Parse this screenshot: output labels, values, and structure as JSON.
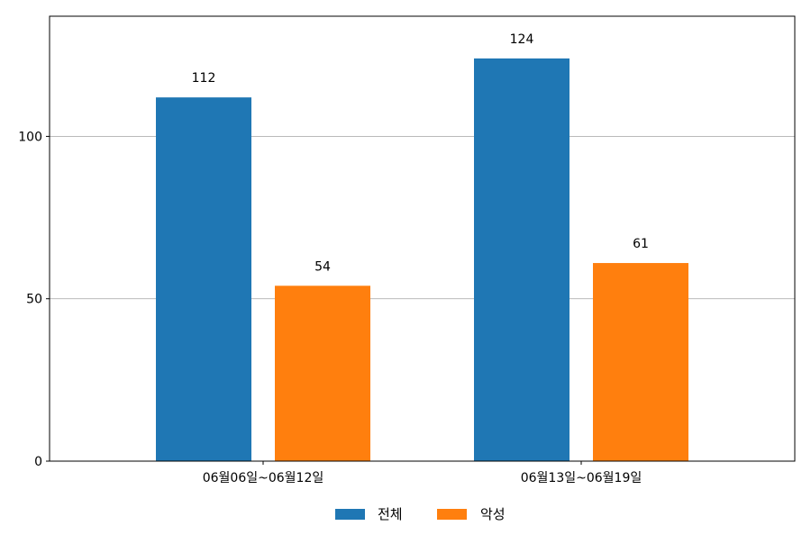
{
  "chart_data": {
    "type": "bar",
    "categories": [
      "06월06일~06월12일",
      "06월13일~06월19일"
    ],
    "series": [
      {
        "name": "전체",
        "values": [
          112,
          124
        ],
        "color": "#1f77b4"
      },
      {
        "name": "악성",
        "values": [
          54,
          61
        ],
        "color": "#ff7f0e"
      }
    ],
    "ylim": [
      0,
      137
    ],
    "yticks": [
      0,
      50,
      100
    ],
    "grid": "horizontal",
    "legend_position": "bottom-center",
    "data_labels": true
  }
}
